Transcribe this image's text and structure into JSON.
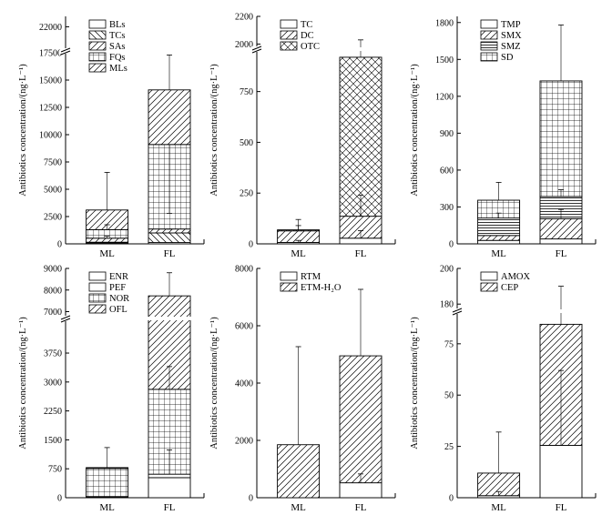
{
  "figure": {
    "ylabel": "Antibiotics concentration/(ng·L⁻¹)"
  },
  "chart_data": [
    {
      "type": "bar",
      "stacked": true,
      "categories": [
        "ML",
        "FL"
      ],
      "ylabel": "Antibiotics concentration/(ng·L⁻¹)",
      "ylim": [
        0,
        22600
      ],
      "axis_break": [
        17500,
        20500
      ],
      "yticks": [
        0,
        2500,
        5000,
        7500,
        10000,
        12500,
        15000,
        17500,
        22000
      ],
      "legend_position": "top-left",
      "series": [
        {
          "name": "BLs",
          "values": [
            80,
            120
          ]
        },
        {
          "name": "TCs",
          "values": [
            70,
            880
          ]
        },
        {
          "name": "SAs",
          "values": [
            370,
            360
          ]
        },
        {
          "name": "FQs",
          "values": [
            780,
            7740
          ]
        },
        {
          "name": "MLs",
          "values": [
            1800,
            5000
          ]
        }
      ],
      "error_tops": [
        [
          null,
          null
        ],
        [
          null,
          null
        ],
        [
          700,
          1350
        ],
        [
          1750,
          2800
        ],
        [
          6550,
          17300
        ]
      ]
    },
    {
      "type": "bar",
      "stacked": true,
      "categories": [
        "ML",
        "FL"
      ],
      "ylabel": "Antibiotics concentration/(ng·L⁻¹)",
      "ylim": [
        0,
        2200
      ],
      "axis_break": [
        950,
        1950
      ],
      "yticks": [
        0,
        250,
        500,
        750,
        2000,
        2200
      ],
      "legend_position": "top-left",
      "series": [
        {
          "name": "TC",
          "values": [
            7,
            28
          ]
        },
        {
          "name": "DC",
          "values": [
            57,
            108
          ]
        },
        {
          "name": "OTC",
          "values": [
            5,
            783
          ]
        }
      ],
      "error_tops": [
        [
          17,
          65
        ],
        [
          90,
          240
        ],
        [
          120,
          2030
        ]
      ]
    },
    {
      "type": "bar",
      "stacked": true,
      "categories": [
        "ML",
        "FL"
      ],
      "ylabel": "Antibiotics concentration/(ng·L⁻¹)",
      "ylim": [
        0,
        1850
      ],
      "yticks": [
        0,
        300,
        600,
        900,
        1200,
        1500,
        1800
      ],
      "legend_position": "top-left",
      "series": [
        {
          "name": "TMP",
          "values": [
            28,
            40
          ]
        },
        {
          "name": "SMX",
          "values": [
            40,
            165
          ]
        },
        {
          "name": "SMZ",
          "values": [
            142,
            180
          ]
        },
        {
          "name": "SD",
          "values": [
            145,
            940
          ]
        }
      ],
      "error_tops": [
        [
          null,
          null
        ],
        [
          null,
          280
        ],
        [
          250,
          440
        ],
        [
          500,
          1780
        ]
      ]
    },
    {
      "type": "bar",
      "stacked": true,
      "categories": [
        "ML",
        "FL"
      ],
      "ylabel": "Antibiotics concentration/(ng·L⁻¹)",
      "ylim": [
        0,
        9000
      ],
      "axis_break": [
        4600,
        6600
      ],
      "yticks": [
        0,
        750,
        1500,
        2250,
        3000,
        3750,
        7000,
        8000,
        9000
      ],
      "legend_position": "top-left",
      "series": [
        {
          "name": "ENR",
          "values": [
            20,
            520
          ]
        },
        {
          "name": "PEF",
          "values": [
            10,
            90
          ]
        },
        {
          "name": "NOR",
          "values": [
            730,
            2200
          ]
        },
        {
          "name": "OFL",
          "values": [
            20,
            4920
          ]
        }
      ],
      "error_tops": [
        [
          null,
          null
        ],
        [
          null,
          1240
        ],
        [
          780,
          3400
        ],
        [
          1300,
          8800
        ]
      ]
    },
    {
      "type": "bar",
      "stacked": true,
      "categories": [
        "ML",
        "FL"
      ],
      "ylabel": "Antibiotics concentration/(ng·L⁻¹)",
      "ylim": [
        0,
        8000
      ],
      "yticks": [
        0,
        2000,
        4000,
        6000,
        8000
      ],
      "legend_position": "top-left",
      "series": [
        {
          "name": "RTM",
          "values": [
            0,
            520
          ]
        },
        {
          "name": "ETM-H₂O",
          "values": [
            1850,
            4430
          ]
        }
      ],
      "error_tops": [
        [
          null,
          830
        ],
        [
          5270,
          7270
        ]
      ]
    },
    {
      "type": "bar",
      "stacked": true,
      "categories": [
        "ML",
        "FL"
      ],
      "ylabel": "Antibiotics concentration/(ng·L⁻¹)",
      "ylim": [
        0,
        200
      ],
      "axis_break": [
        90,
        175
      ],
      "yticks": [
        0,
        25,
        50,
        75,
        180,
        200
      ],
      "legend_position": "top-left",
      "series": [
        {
          "name": "AMOX",
          "values": [
            1,
            25.5
          ]
        },
        {
          "name": "CEP",
          "values": [
            11,
            59
          ]
        }
      ],
      "error_tops": [
        [
          3,
          62
        ],
        [
          32,
          190
        ]
      ]
    }
  ]
}
